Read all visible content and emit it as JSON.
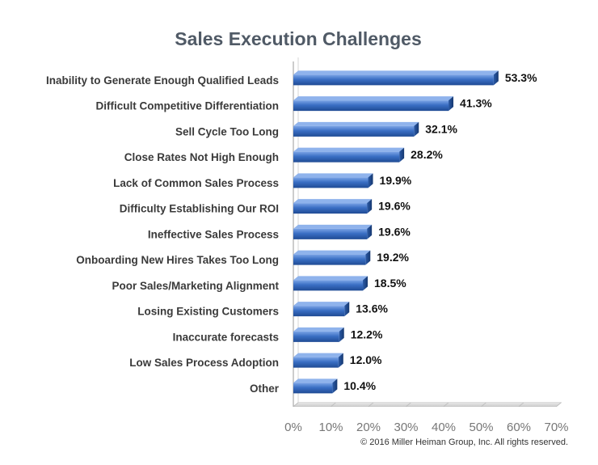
{
  "chart_data": {
    "type": "bar",
    "orientation": "horizontal",
    "title": "Sales Execution Challenges",
    "categories": [
      "Inability to Generate Enough Qualified Leads",
      "Difficult Competitive Differentiation",
      "Sell Cycle Too Long",
      "Close Rates Not High Enough",
      "Lack of Common Sales Process",
      "Difficulty Establishing Our ROI",
      "Ineffective Sales Process",
      "Onboarding New Hires Takes Too Long",
      "Poor Sales/Marketing Alignment",
      "Losing Existing Customers",
      "Inaccurate forecasts",
      "Low Sales Process Adoption",
      "Other"
    ],
    "values": [
      53.3,
      41.3,
      32.1,
      28.2,
      19.9,
      19.6,
      19.6,
      19.2,
      18.5,
      13.6,
      12.2,
      12.0,
      10.4
    ],
    "value_labels": [
      "53.3%",
      "41.3%",
      "32.1%",
      "28.2%",
      "19.9%",
      "19.6%",
      "19.6%",
      "19.2%",
      "18.5%",
      "13.6%",
      "12.2%",
      "12.0%",
      "10.4%"
    ],
    "xlim": [
      0,
      70
    ],
    "x_ticks": [
      0,
      10,
      20,
      30,
      40,
      50,
      60,
      70
    ],
    "x_tick_labels": [
      "0%",
      "10%",
      "20%",
      "30%",
      "40%",
      "50%",
      "60%",
      "70%"
    ],
    "xlabel": "",
    "ylabel": "",
    "grid": false,
    "legend": "none",
    "bar_color": "#3a6fc4"
  },
  "footer": {
    "copyright": "© 2016 Miller Heiman Group, Inc. All rights reserved."
  }
}
